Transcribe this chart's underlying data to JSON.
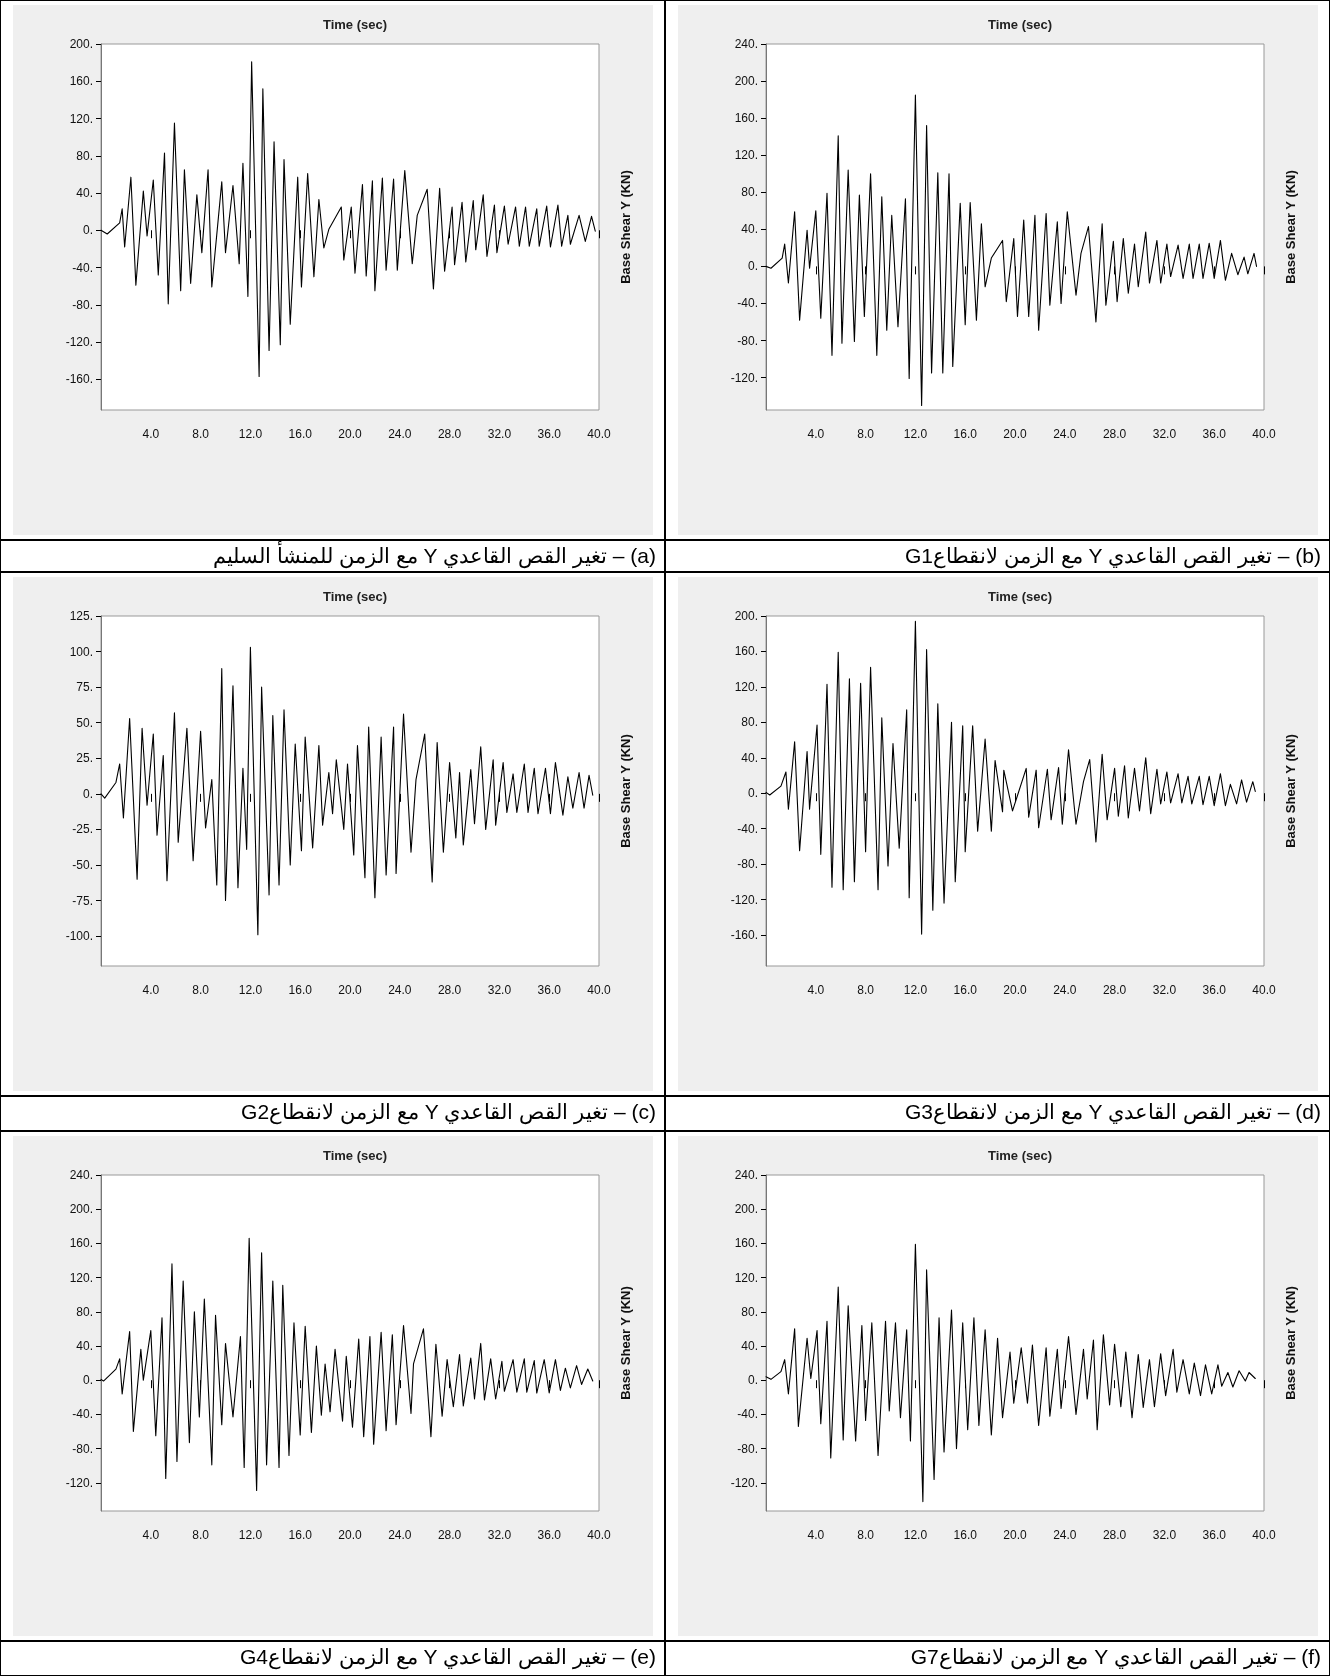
{
  "chart_data": [
    {
      "type": "line",
      "title": "(a) – تغير القص القاعدي Y مع الزمن للمنشأ السليم",
      "xlabel": "Time (sec)",
      "ylabel": "Base Shear Y (KN)",
      "color": "#000000",
      "x": [
        0,
        0.5,
        1.5,
        1.7,
        1.9,
        2.4,
        2.8,
        3.4,
        3.7,
        4.2,
        4.6,
        5.1,
        5.4,
        5.9,
        6.4,
        6.7,
        7.2,
        7.7,
        8.1,
        8.6,
        8.9,
        9.7,
        10.0,
        10.6,
        11.1,
        11.4,
        11.8,
        12.1,
        12.7,
        13.0,
        13.5,
        13.9,
        14.4,
        14.7,
        15.2,
        15.8,
        16.1,
        16.6,
        17.1,
        17.5,
        17.9,
        18.3,
        19.3,
        19.5,
        20.1,
        20.4,
        21.0,
        21.3,
        21.8,
        22.0,
        22.6,
        22.9,
        23.5,
        23.8,
        24.4,
        25.0,
        25.4,
        26.2,
        26.7,
        27.2,
        27.6,
        28.2,
        28.4,
        29.0,
        29.3,
        29.9,
        30.1,
        30.7,
        31.0,
        31.6,
        31.8,
        32.4,
        32.7,
        33.3,
        33.6,
        34.1,
        34.4,
        35.0,
        35.2,
        35.8,
        36.1,
        36.7,
        37.0,
        37.5,
        37.7,
        38.4,
        38.9,
        39.4,
        39.7
      ],
      "values": [
        0,
        -4,
        8,
        23,
        -18,
        57,
        -59,
        42,
        -6,
        54,
        -48,
        83,
        -79,
        115,
        -65,
        65,
        -57,
        38,
        -24,
        65,
        -61,
        52,
        -24,
        48,
        -36,
        72,
        -71,
        181,
        -157,
        152,
        -129,
        95,
        -123,
        76,
        -101,
        57,
        -61,
        61,
        -50,
        33,
        -19,
        1,
        25,
        -32,
        25,
        -46,
        49,
        -49,
        53,
        -65,
        56,
        -43,
        55,
        -43,
        64,
        -36,
        16,
        44,
        -63,
        45,
        -44,
        25,
        -37,
        30,
        -34,
        32,
        -21,
        38,
        -28,
        27,
        -24,
        26,
        -15,
        25,
        -17,
        25,
        -17,
        23,
        -17,
        26,
        -18,
        27,
        -17,
        16,
        -15,
        16,
        -12,
        15,
        -1
      ],
      "xlim": [
        0,
        40
      ],
      "ylim": [
        -193,
        200
      ],
      "xticks": [
        {
          "value": 4,
          "label": "4.0"
        },
        {
          "value": 8,
          "label": "8.0"
        },
        {
          "value": 12,
          "label": "12.0"
        },
        {
          "value": 16,
          "label": "16.0"
        },
        {
          "value": 20,
          "label": "20.0"
        },
        {
          "value": 24,
          "label": "24.0"
        },
        {
          "value": 28,
          "label": "28.0"
        },
        {
          "value": 32,
          "label": "32.0"
        },
        {
          "value": 36,
          "label": "36.0"
        },
        {
          "value": 40,
          "label": "40.0"
        }
      ],
      "yticks": [
        {
          "value": 200,
          "label": "200."
        },
        {
          "value": 160,
          "label": "160."
        },
        {
          "value": 120,
          "label": "120."
        },
        {
          "value": 80,
          "label": "80."
        },
        {
          "value": 40,
          "label": "40."
        },
        {
          "value": 0,
          "label": "0."
        },
        {
          "value": -40,
          "label": "-40."
        },
        {
          "value": -80,
          "label": "-80."
        },
        {
          "value": -120,
          "label": "-120."
        },
        {
          "value": -160,
          "label": "-160."
        }
      ]
    },
    {
      "type": "line",
      "title": "(b) – تغير القص القاعدي Y مع الزمن لانقطاعG1",
      "xlabel": "Time (sec)",
      "ylabel": "Base Shear Y (KN)",
      "color": "#000000",
      "x": [
        0,
        0.4,
        1.3,
        1.5,
        1.8,
        2.3,
        2.7,
        3.3,
        3.5,
        4.0,
        4.4,
        4.9,
        5.3,
        5.8,
        6.1,
        6.6,
        7.1,
        7.5,
        7.9,
        8.4,
        8.9,
        9.3,
        9.7,
        10.1,
        10.6,
        11.2,
        11.5,
        12.0,
        12.5,
        12.9,
        13.3,
        13.8,
        14.2,
        14.7,
        15.0,
        15.6,
        16.0,
        16.4,
        16.9,
        17.3,
        17.6,
        18.1,
        19.0,
        19.3,
        19.9,
        20.2,
        20.7,
        21.1,
        21.6,
        21.9,
        22.5,
        22.8,
        23.4,
        23.7,
        24.2,
        24.9,
        25.3,
        25.9,
        26.5,
        27.0,
        27.3,
        27.9,
        28.2,
        28.7,
        29.1,
        29.6,
        29.9,
        30.5,
        30.8,
        31.4,
        31.7,
        32.2,
        32.5,
        33.1,
        33.5,
        34.0,
        34.3,
        34.8,
        35.1,
        35.6,
        36.0,
        36.5,
        36.9,
        37.4,
        37.9,
        38.4,
        38.7,
        39.2,
        39.4
      ],
      "values": [
        0,
        -2,
        9,
        24,
        -18,
        59,
        -58,
        39,
        -2,
        60,
        -56,
        79,
        -96,
        141,
        -83,
        104,
        -81,
        77,
        -54,
        100,
        -96,
        75,
        -69,
        55,
        -65,
        73,
        -121,
        185,
        -150,
        152,
        -115,
        101,
        -115,
        100,
        -108,
        68,
        -63,
        69,
        -58,
        46,
        -22,
        9,
        28,
        -38,
        30,
        -54,
        50,
        -54,
        55,
        -69,
        57,
        -42,
        48,
        -40,
        59,
        -31,
        14,
        43,
        -60,
        46,
        -42,
        27,
        -38,
        30,
        -29,
        24,
        -22,
        37,
        -18,
        28,
        -18,
        24,
        -11,
        23,
        -13,
        24,
        -13,
        24,
        -13,
        25,
        -13,
        28,
        -15,
        14,
        -9,
        10,
        -8,
        14,
        0
      ],
      "xlim": [
        0,
        40
      ],
      "ylim": [
        -155,
        240
      ],
      "xticks": [
        {
          "value": 4,
          "label": "4.0"
        },
        {
          "value": 8,
          "label": "8.0"
        },
        {
          "value": 12,
          "label": "12.0"
        },
        {
          "value": 16,
          "label": "16.0"
        },
        {
          "value": 20,
          "label": "20.0"
        },
        {
          "value": 24,
          "label": "24.0"
        },
        {
          "value": 28,
          "label": "28.0"
        },
        {
          "value": 32,
          "label": "32.0"
        },
        {
          "value": 36,
          "label": "36.0"
        },
        {
          "value": 40,
          "label": "40.0"
        }
      ],
      "yticks": [
        {
          "value": 240,
          "label": "240."
        },
        {
          "value": 200,
          "label": "200."
        },
        {
          "value": 160,
          "label": "160."
        },
        {
          "value": 120,
          "label": "120."
        },
        {
          "value": 80,
          "label": "80."
        },
        {
          "value": 40,
          "label": "40."
        },
        {
          "value": 0,
          "label": "0."
        },
        {
          "value": -40,
          "label": "-40."
        },
        {
          "value": -80,
          "label": "-80."
        },
        {
          "value": -120,
          "label": "-120."
        }
      ]
    },
    {
      "type": "line",
      "title": "(c) – تغير القص القاعدي Y مع الزمن لانقطاعG2",
      "xlabel": "Time (sec)",
      "ylabel": "Base Shear Y (KN)",
      "color": "#000000",
      "x": [
        0,
        0.3,
        1.2,
        1.5,
        1.8,
        2.3,
        2.9,
        3.3,
        3.7,
        4.2,
        4.5,
        5.0,
        5.3,
        5.9,
        6.2,
        6.9,
        7.4,
        8.0,
        8.4,
        8.9,
        9.3,
        9.7,
        10.0,
        10.6,
        11.0,
        11.4,
        11.7,
        12.0,
        12.6,
        12.9,
        13.5,
        13.8,
        14.3,
        14.7,
        15.2,
        15.6,
        16.1,
        16.4,
        17.0,
        17.5,
        17.8,
        18.3,
        18.6,
        18.9,
        19.5,
        19.8,
        20.3,
        20.6,
        21.2,
        21.5,
        22.0,
        22.5,
        22.9,
        23.5,
        23.7,
        24.3,
        24.9,
        25.3,
        26.0,
        26.6,
        27.0,
        27.5,
        28.0,
        28.5,
        28.8,
        29.1,
        29.7,
        30.0,
        30.5,
        30.9,
        31.5,
        31.7,
        32.3,
        32.6,
        33.1,
        33.4,
        34.0,
        34.3,
        34.8,
        35.1,
        35.7,
        36.1,
        36.5,
        37.1,
        37.5,
        37.9,
        38.4,
        38.8,
        39.2,
        39.5
      ],
      "values": [
        0,
        -3,
        8,
        21,
        -17,
        53,
        -60,
        46,
        -8,
        42,
        -29,
        27,
        -61,
        57,
        -34,
        46,
        -47,
        44,
        -24,
        10,
        -64,
        88,
        -75,
        76,
        -66,
        18,
        -39,
        103,
        -99,
        75,
        -71,
        55,
        -64,
        59,
        -50,
        35,
        -40,
        40,
        -38,
        34,
        -22,
        15,
        -14,
        24,
        -25,
        21,
        -43,
        34,
        -59,
        47,
        -73,
        40,
        -57,
        47,
        -56,
        56,
        -41,
        10,
        42,
        -62,
        36,
        -41,
        22,
        -31,
        15,
        -36,
        17,
        -21,
        33,
        -25,
        24,
        -22,
        22,
        -13,
        14,
        -13,
        21,
        -13,
        18,
        -14,
        18,
        -14,
        22,
        -15,
        12,
        -10,
        15,
        -10,
        13,
        -1
      ],
      "xlim": [
        0,
        40
      ],
      "ylim": [
        -121,
        125
      ],
      "xticks": [
        {
          "value": 4,
          "label": "4.0"
        },
        {
          "value": 8,
          "label": "8.0"
        },
        {
          "value": 12,
          "label": "12.0"
        },
        {
          "value": 16,
          "label": "16.0"
        },
        {
          "value": 20,
          "label": "20.0"
        },
        {
          "value": 24,
          "label": "24.0"
        },
        {
          "value": 28,
          "label": "28.0"
        },
        {
          "value": 32,
          "label": "32.0"
        },
        {
          "value": 36,
          "label": "36.0"
        },
        {
          "value": 40,
          "label": "40.0"
        }
      ],
      "yticks": [
        {
          "value": 125,
          "label": "125."
        },
        {
          "value": 100,
          "label": "100."
        },
        {
          "value": 75,
          "label": "75."
        },
        {
          "value": 50,
          "label": "50."
        },
        {
          "value": 25,
          "label": "25."
        },
        {
          "value": 0,
          "label": "0."
        },
        {
          "value": -25,
          "label": "-25."
        },
        {
          "value": -50,
          "label": "-50."
        },
        {
          "value": -75,
          "label": "-75."
        },
        {
          "value": -100,
          "label": "-100."
        }
      ]
    },
    {
      "type": "line",
      "title": "(d) – تغير القص القاعدي Y مع الزمن لانقطاعG3",
      "xlabel": "Time (sec)",
      "ylabel": "Base Shear Y (KN)",
      "color": "#000000",
      "x": [
        0,
        0.3,
        1.2,
        1.6,
        1.8,
        2.3,
        2.7,
        3.3,
        3.5,
        4.1,
        4.4,
        4.9,
        5.3,
        5.8,
        6.2,
        6.7,
        7.1,
        7.6,
        8.0,
        8.4,
        9.0,
        9.3,
        9.8,
        10.2,
        10.7,
        11.3,
        11.5,
        12.0,
        12.5,
        12.9,
        13.4,
        13.8,
        14.3,
        14.9,
        15.2,
        15.8,
        16.0,
        16.6,
        17.0,
        17.6,
        18.1,
        18.4,
        19.0,
        19.1,
        19.8,
        20.9,
        21.1,
        21.7,
        21.9,
        22.6,
        22.9,
        23.5,
        23.8,
        24.3,
        24.9,
        25.5,
        26.0,
        26.5,
        27.0,
        27.4,
        28.0,
        28.3,
        28.8,
        29.1,
        29.6,
        30.0,
        30.5,
        30.9,
        31.4,
        31.7,
        32.2,
        32.5,
        33.1,
        33.4,
        33.9,
        34.2,
        34.8,
        35.1,
        35.6,
        36.0,
        36.5,
        36.9,
        37.3,
        37.8,
        38.2,
        38.6,
        39.1,
        39.3
      ],
      "values": [
        1,
        -2,
        8,
        24,
        -18,
        58,
        -65,
        47,
        -18,
        77,
        -69,
        123,
        -106,
        159,
        -109,
        129,
        -100,
        124,
        -66,
        142,
        -109,
        85,
        -82,
        56,
        -62,
        94,
        -118,
        194,
        -159,
        162,
        -132,
        101,
        -124,
        80,
        -100,
        76,
        -66,
        76,
        -43,
        61,
        -43,
        37,
        -21,
        26,
        -20,
        28,
        -27,
        26,
        -39,
        27,
        -30,
        29,
        -35,
        49,
        -35,
        13,
        38,
        -55,
        44,
        -30,
        28,
        -26,
        31,
        -28,
        28,
        -20,
        40,
        -23,
        27,
        -12,
        24,
        -11,
        22,
        -11,
        19,
        -12,
        19,
        -13,
        19,
        -14,
        22,
        -14,
        10,
        -12,
        15,
        -10,
        13,
        2
      ],
      "xlim": [
        0,
        40
      ],
      "ylim": [
        -195,
        200
      ],
      "xticks": [
        {
          "value": 4,
          "label": "4.0"
        },
        {
          "value": 8,
          "label": "8.0"
        },
        {
          "value": 12,
          "label": "12.0"
        },
        {
          "value": 16,
          "label": "16.0"
        },
        {
          "value": 20,
          "label": "20.0"
        },
        {
          "value": 24,
          "label": "24.0"
        },
        {
          "value": 28,
          "label": "28.0"
        },
        {
          "value": 32,
          "label": "32.0"
        },
        {
          "value": 36,
          "label": "36.0"
        },
        {
          "value": 40,
          "label": "40.0"
        }
      ],
      "yticks": [
        {
          "value": 200,
          "label": "200."
        },
        {
          "value": 160,
          "label": "160."
        },
        {
          "value": 120,
          "label": "120."
        },
        {
          "value": 80,
          "label": "80."
        },
        {
          "value": 40,
          "label": "40."
        },
        {
          "value": 0,
          "label": "0."
        },
        {
          "value": -40,
          "label": "-40."
        },
        {
          "value": -80,
          "label": "-80."
        },
        {
          "value": -120,
          "label": "-120."
        },
        {
          "value": -160,
          "label": "-160."
        }
      ]
    },
    {
      "type": "line",
      "title": "(e) – تغير القص القاعدي Y مع الزمن لانقطاعG4",
      "xlabel": "Time (sec)",
      "ylabel": "Base Shear Y (KN)",
      "color": "#000000",
      "x": [
        0,
        0.2,
        1.2,
        1.5,
        1.7,
        2.3,
        2.6,
        3.2,
        3.4,
        4.0,
        4.4,
        4.9,
        5.2,
        5.7,
        6.1,
        6.6,
        7.1,
        7.5,
        7.9,
        8.3,
        8.9,
        9.2,
        9.7,
        10.0,
        10.6,
        11.2,
        11.5,
        11.9,
        12.5,
        12.9,
        13.3,
        13.8,
        14.3,
        14.6,
        15.1,
        15.5,
        16.0,
        16.4,
        16.9,
        17.3,
        17.7,
        18.0,
        18.4,
        18.8,
        19.4,
        19.7,
        20.2,
        20.7,
        21.1,
        21.6,
        21.9,
        22.5,
        22.9,
        23.4,
        23.7,
        24.3,
        24.9,
        25.1,
        25.9,
        26.5,
        26.9,
        27.4,
        27.8,
        28.3,
        28.8,
        29.1,
        29.7,
        30.0,
        30.5,
        30.8,
        31.3,
        31.7,
        32.2,
        32.4,
        33.1,
        33.4,
        34.0,
        34.2,
        34.8,
        35.0,
        35.6,
        36.0,
        36.5,
        36.9,
        37.3,
        37.7,
        38.2,
        38.6,
        39.1,
        39.5
      ],
      "values": [
        1,
        -1,
        13,
        25,
        -16,
        57,
        -60,
        36,
        0,
        58,
        -65,
        73,
        -115,
        136,
        -95,
        116,
        -73,
        80,
        -43,
        95,
        -99,
        76,
        -52,
        43,
        -43,
        51,
        -102,
        166,
        -129,
        149,
        -99,
        116,
        -102,
        111,
        -88,
        67,
        -64,
        63,
        -61,
        40,
        -41,
        19,
        -37,
        36,
        -48,
        28,
        -55,
        48,
        -66,
        51,
        -75,
        56,
        -59,
        53,
        -52,
        64,
        -39,
        19,
        60,
        -66,
        42,
        -42,
        24,
        -31,
        30,
        -30,
        26,
        -22,
        43,
        -23,
        25,
        -22,
        22,
        -13,
        24,
        -14,
        25,
        -14,
        23,
        -15,
        24,
        -15,
        24,
        -12,
        14,
        -9,
        17,
        -5,
        13,
        -1
      ],
      "xlim": [
        0,
        40
      ],
      "ylim": [
        -153,
        240
      ],
      "xticks": [
        {
          "value": 4,
          "label": "4.0"
        },
        {
          "value": 8,
          "label": "8.0"
        },
        {
          "value": 12,
          "label": "12.0"
        },
        {
          "value": 16,
          "label": "16.0"
        },
        {
          "value": 20,
          "label": "20.0"
        },
        {
          "value": 24,
          "label": "24.0"
        },
        {
          "value": 28,
          "label": "28.0"
        },
        {
          "value": 32,
          "label": "32.0"
        },
        {
          "value": 36,
          "label": "36.0"
        },
        {
          "value": 40,
          "label": "40.0"
        }
      ],
      "yticks": [
        {
          "value": 240,
          "label": "240."
        },
        {
          "value": 200,
          "label": "200."
        },
        {
          "value": 160,
          "label": "160."
        },
        {
          "value": 120,
          "label": "120."
        },
        {
          "value": 80,
          "label": "80."
        },
        {
          "value": 40,
          "label": "40."
        },
        {
          "value": 0,
          "label": "0."
        },
        {
          "value": -40,
          "label": "-40."
        },
        {
          "value": -80,
          "label": "-80."
        },
        {
          "value": -120,
          "label": "-120."
        }
      ]
    },
    {
      "type": "line",
      "title": "(f) – تغير القص القاعدي Y مع الزمن لانقطاعG7",
      "xlabel": "Time (sec)",
      "ylabel": "Base Shear Y (KN)",
      "color": "#000000",
      "x": [
        0,
        0.4,
        1.2,
        1.5,
        1.8,
        2.3,
        2.6,
        3.3,
        3.6,
        4.1,
        4.4,
        4.9,
        5.2,
        5.8,
        6.2,
        6.6,
        7.2,
        7.7,
        8.0,
        8.5,
        9.0,
        9.6,
        9.9,
        10.4,
        10.8,
        11.3,
        11.6,
        12.0,
        12.6,
        12.9,
        13.5,
        13.9,
        14.3,
        14.9,
        15.3,
        15.8,
        16.2,
        16.7,
        17.1,
        17.6,
        18.1,
        18.6,
        19.0,
        19.6,
        19.9,
        20.5,
        21.0,
        21.4,
        21.9,
        22.5,
        22.8,
        23.4,
        23.7,
        24.3,
        24.9,
        25.5,
        25.8,
        26.3,
        26.6,
        27.1,
        27.6,
        28.0,
        28.5,
        28.9,
        29.4,
        29.9,
        30.3,
        30.8,
        31.2,
        31.7,
        32.1,
        32.7,
        33.0,
        33.5,
        34.0,
        34.4,
        34.9,
        35.3,
        35.8,
        36.3,
        36.6,
        37.1,
        37.5,
        38.0,
        38.5,
        38.8,
        39.3
      ],
      "values": [
        4,
        1,
        10,
        24,
        -16,
        60,
        -54,
        49,
        2,
        58,
        -51,
        69,
        -91,
        109,
        -70,
        87,
        -71,
        64,
        -47,
        67,
        -88,
        69,
        -36,
        67,
        -44,
        59,
        -71,
        159,
        -142,
        129,
        -116,
        73,
        -84,
        82,
        -80,
        67,
        -58,
        73,
        -53,
        59,
        -64,
        49,
        -44,
        33,
        -27,
        38,
        -27,
        41,
        -53,
        38,
        -42,
        36,
        -33,
        51,
        -40,
        36,
        -22,
        47,
        -58,
        53,
        -29,
        42,
        -31,
        33,
        -44,
        30,
        -32,
        24,
        -31,
        31,
        -18,
        36,
        -14,
        24,
        -16,
        20,
        -18,
        18,
        -16,
        18,
        -7,
        9,
        -8,
        11,
        -1,
        9,
        2
      ],
      "xlim": [
        0,
        40
      ],
      "ylim": [
        -153,
        240
      ],
      "xticks": [
        {
          "value": 4,
          "label": "4.0"
        },
        {
          "value": 8,
          "label": "8.0"
        },
        {
          "value": 12,
          "label": "12.0"
        },
        {
          "value": 16,
          "label": "16.0"
        },
        {
          "value": 20,
          "label": "20.0"
        },
        {
          "value": 24,
          "label": "24.0"
        },
        {
          "value": 28,
          "label": "28.0"
        },
        {
          "value": 32,
          "label": "32.0"
        },
        {
          "value": 36,
          "label": "36.0"
        },
        {
          "value": 40,
          "label": "40.0"
        }
      ],
      "yticks": [
        {
          "value": 240,
          "label": "240."
        },
        {
          "value": 200,
          "label": "200."
        },
        {
          "value": 160,
          "label": "160."
        },
        {
          "value": 120,
          "label": "120."
        },
        {
          "value": 80,
          "label": "80."
        },
        {
          "value": 40,
          "label": "40."
        },
        {
          "value": 0,
          "label": "0."
        },
        {
          "value": -40,
          "label": "-40."
        },
        {
          "value": -80,
          "label": "-80."
        },
        {
          "value": -120,
          "label": "-120."
        }
      ]
    }
  ]
}
